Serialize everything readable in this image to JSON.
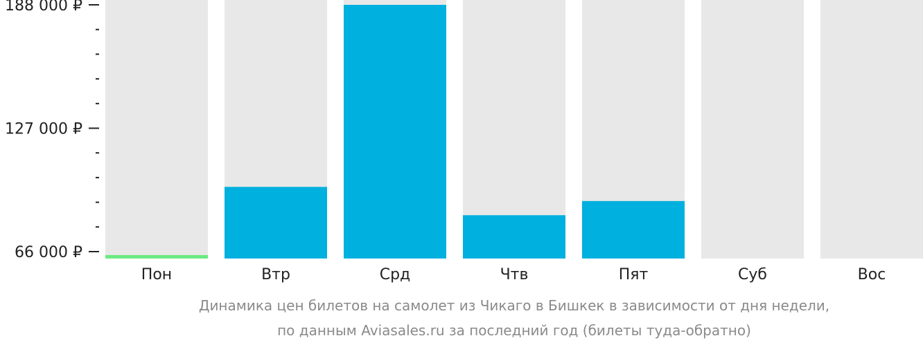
{
  "chart_data": {
    "type": "bar",
    "categories": [
      "Пон",
      "Втр",
      "Срд",
      "Чтв",
      "Пят",
      "Суб",
      "Вос"
    ],
    "values": [
      66000,
      98000,
      188000,
      84000,
      91000,
      null,
      null
    ],
    "ylim": [
      66000,
      188000
    ],
    "y_ticks": [
      {
        "value": 188000,
        "label": "188 000 ₽"
      },
      {
        "value": 127000,
        "label": "127 000 ₽"
      },
      {
        "value": 66000,
        "label": "66 000 ₽"
      }
    ],
    "y_minor_ticks": [
      175800,
      163600,
      151400,
      139200,
      114800,
      102600,
      90400,
      78200
    ],
    "colors": {
      "bar": "#00b0de",
      "lowest_bar": "#6bea82",
      "background_column": "#e8e8e8",
      "axis": "#222222"
    },
    "caption_lines": [
      "Динамика цен билетов на самолет из Чикаго в Бишкек в зависимости от дня недели,",
      "по данным Aviasales.ru за последний год (билеты туда-обратно)"
    ]
  }
}
